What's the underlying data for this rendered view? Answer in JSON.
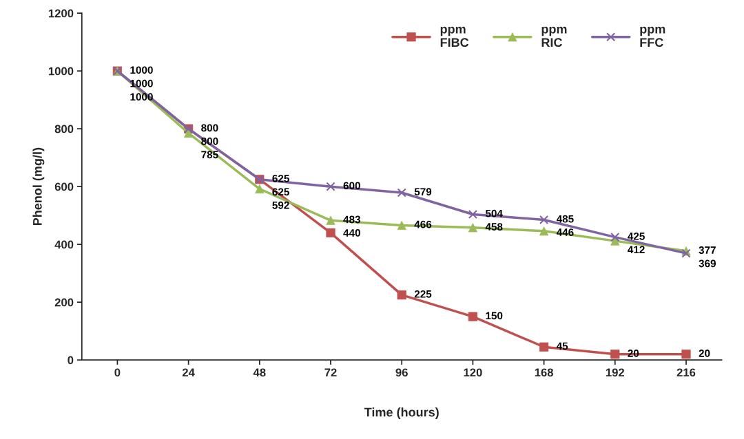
{
  "chart_data": {
    "type": "line",
    "xlabel": "Time (hours)",
    "ylabel": "Phenol (mg/l)",
    "categories": [
      "0",
      "24",
      "48",
      "72",
      "96",
      "120",
      "168",
      "192",
      "216"
    ],
    "series": [
      {
        "name": "ppm\nFIBC",
        "color": "#c0504d",
        "marker": "square",
        "values": [
          1000,
          800,
          625,
          440,
          225,
          150,
          45,
          20,
          20
        ]
      },
      {
        "name": "ppm\nRIC",
        "color": "#9bbb59",
        "marker": "triangle",
        "values": [
          1000,
          785,
          592,
          483,
          466,
          458,
          446,
          412,
          377
        ]
      },
      {
        "name": "ppm\nFFC",
        "color": "#8064a2",
        "marker": "cross",
        "values": [
          1000,
          800,
          625,
          600,
          579,
          504,
          485,
          425,
          369
        ]
      }
    ],
    "ylim": [
      0,
      1200
    ],
    "yticks": [
      0,
      200,
      400,
      600,
      800,
      1000,
      1200
    ],
    "data_labels": true,
    "grid": false,
    "legend": "top right",
    "line_style": "solid"
  }
}
